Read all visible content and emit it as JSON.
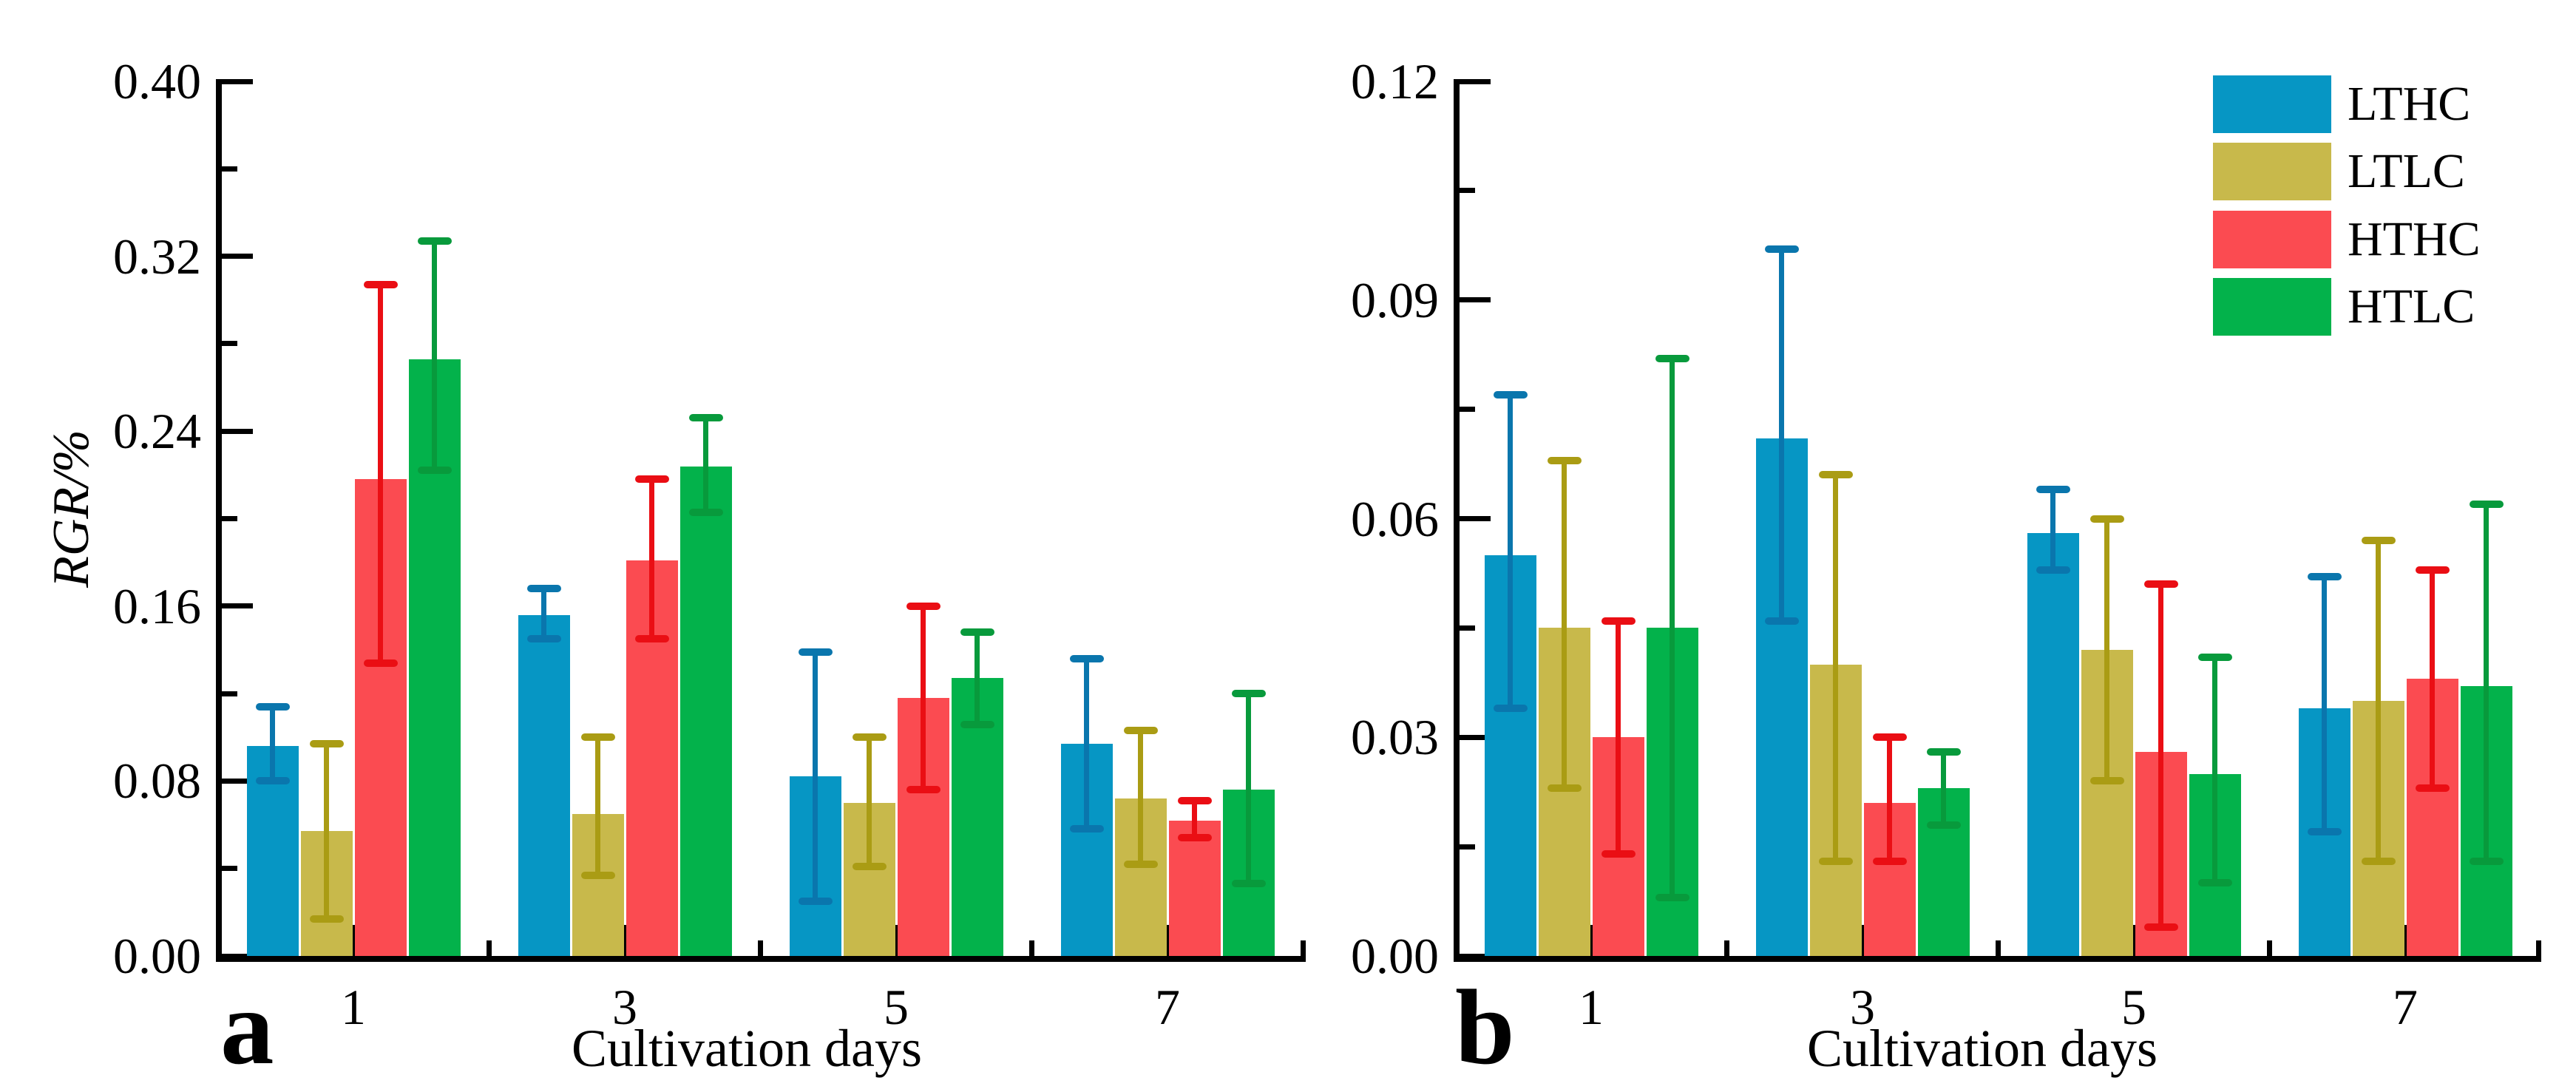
{
  "figure": {
    "xlabel": "Cultivation days",
    "ylabel": "RGR/%"
  },
  "legend": {
    "position": "top-right-panel-b",
    "entries": [
      {
        "label": "LTHC",
        "color": "#0696c4",
        "err_color": "#0a76ad"
      },
      {
        "label": "LTLC",
        "color": "#c8b94b",
        "err_color": "#aa9c14"
      },
      {
        "label": "HTHC",
        "color": "#fb4b51",
        "err_color": "#ea0e14"
      },
      {
        "label": "HTLC",
        "color": "#03b24b",
        "err_color": "#089a3c"
      }
    ]
  },
  "chart_data": [
    {
      "type": "bar",
      "panel_letter": "a",
      "title": "",
      "xlabel": "Cultivation days",
      "ylabel": "RGR/%",
      "categories": [
        "1",
        "3",
        "5",
        "7"
      ],
      "ylim": [
        0,
        0.4
      ],
      "y_tick_values": [
        0.0,
        0.08,
        0.16,
        0.24,
        0.32,
        0.4
      ],
      "y_tick_labels": [
        "0.00",
        "0.08",
        "0.16",
        "0.24",
        "0.32",
        "0.40"
      ],
      "y_minor_step": 0.04,
      "grid": false,
      "series": [
        {
          "name": "LTHC",
          "values": [
            0.096,
            0.156,
            0.082,
            0.097
          ],
          "err_up": [
            0.018,
            0.012,
            0.057,
            0.039
          ],
          "err_down": [
            0.016,
            0.011,
            0.057,
            0.039
          ]
        },
        {
          "name": "LTLC",
          "values": [
            0.057,
            0.065,
            0.07,
            0.072
          ],
          "err_up": [
            0.04,
            0.035,
            0.03,
            0.031
          ],
          "err_down": [
            0.04,
            0.028,
            0.029,
            0.03
          ]
        },
        {
          "name": "HTHC",
          "values": [
            0.218,
            0.181,
            0.118,
            0.062
          ],
          "err_up": [
            0.089,
            0.037,
            0.042,
            0.009
          ],
          "err_down": [
            0.084,
            0.036,
            0.042,
            0.008
          ]
        },
        {
          "name": "HTLC",
          "values": [
            0.273,
            0.224,
            0.127,
            0.076
          ],
          "err_up": [
            0.054,
            0.022,
            0.021,
            0.044
          ],
          "err_down": [
            0.051,
            0.021,
            0.021,
            0.043
          ]
        }
      ]
    },
    {
      "type": "bar",
      "panel_letter": "b",
      "title": "",
      "xlabel": "Cultivation days",
      "ylabel": "",
      "categories": [
        "1",
        "3",
        "5",
        "7"
      ],
      "ylim": [
        0,
        0.12
      ],
      "y_tick_values": [
        0.0,
        0.03,
        0.06,
        0.09,
        0.12
      ],
      "y_tick_labels": [
        "0.00",
        "0.03",
        "0.06",
        "0.09",
        "0.12"
      ],
      "y_minor_step": 0.015,
      "grid": false,
      "series": [
        {
          "name": "LTHC",
          "values": [
            0.055,
            0.071,
            0.058,
            0.034
          ],
          "err_up": [
            0.022,
            0.026,
            0.006,
            0.018
          ],
          "err_down": [
            0.021,
            0.025,
            0.005,
            0.017
          ]
        },
        {
          "name": "LTLC",
          "values": [
            0.045,
            0.04,
            0.042,
            0.035
          ],
          "err_up": [
            0.023,
            0.026,
            0.018,
            0.022
          ],
          "err_down": [
            0.022,
            0.027,
            0.018,
            0.022
          ]
        },
        {
          "name": "HTHC",
          "values": [
            0.03,
            0.021,
            0.028,
            0.038
          ],
          "err_up": [
            0.016,
            0.009,
            0.023,
            0.015
          ],
          "err_down": [
            0.016,
            0.008,
            0.024,
            0.015
          ]
        },
        {
          "name": "HTLC",
          "values": [
            0.045,
            0.023,
            0.025,
            0.037
          ],
          "err_up": [
            0.037,
            0.005,
            0.016,
            0.025
          ],
          "err_down": [
            0.037,
            0.005,
            0.015,
            0.024
          ]
        }
      ]
    }
  ]
}
